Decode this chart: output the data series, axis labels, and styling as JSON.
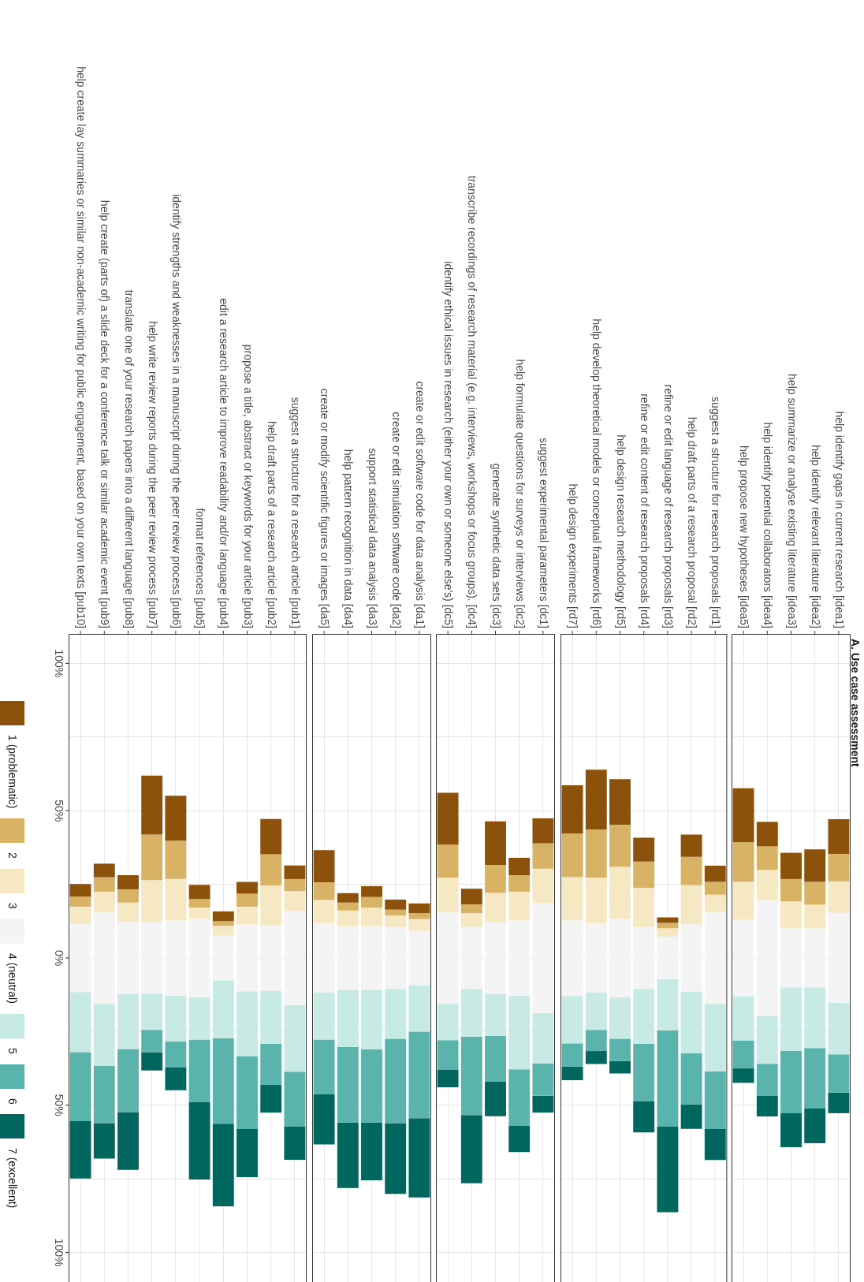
{
  "chart_data": [
    {
      "type": "bar",
      "legend": "left",
      "grid": true,
      "categories": [
        "help create lay summaries or similar non-academic writing for public engagement, based on your own texts [pub10]",
        "help create (parts of) a slide deck for a conference talk or similar academic event [pub9]",
        "translate one of your research papers into a different language [pub8]",
        "help write review reports during the peer review process [pub7]",
        "identify strengths and weaknesses in a manuscript during the peer review process [pub6]",
        "format references [pub5]",
        "edit a research article to improve readability and/or language [pub4]",
        "propose a title, abstract or keywords for your article [pub3]",
        "help draft parts of a research article [pub2]",
        "suggest a structure for a research article [pub1]"
      ],
      "ylim": [
        110,
        -110
      ],
      "yticks": [
        {
          "value": -100,
          "label": "100%"
        },
        {
          "value": -75,
          "label": null
        },
        {
          "value": -50,
          "label": "50%"
        },
        {
          "value": -25,
          "label": null
        },
        {
          "value": 0,
          "label": "0%"
        },
        {
          "value": 25,
          "label": null
        },
        {
          "value": 50,
          "label": "50%"
        },
        {
          "value": 75,
          "label": null
        },
        {
          "value": 100,
          "label": "100%"
        }
      ],
      "series": [
        {
          "name": "1 (problematic)",
          "color": "#8c510a",
          "base": [
            -25.1,
            -32.0,
            -28.1,
            -61.9,
            -55.1,
            -24.8,
            -15.8,
            -25.8,
            -47.2,
            -31.4
          ],
          "values": [
            4.3,
            4.6,
            4.8,
            20.0,
            15.3,
            4.8,
            3.3,
            4.0,
            12.0,
            4.6
          ]
        },
        {
          "name": "2",
          "color": "#d8b365",
          "base": [
            -20.8,
            -27.4,
            -23.3,
            -41.9,
            -39.8,
            -20.0,
            -12.5,
            -21.8,
            -35.2,
            -26.8
          ],
          "values": [
            3.4,
            4.9,
            4.5,
            15.5,
            13.0,
            2.9,
            1.6,
            4.4,
            10.6,
            4.1
          ]
        },
        {
          "name": "3",
          "color": "#f6e8c3",
          "base": [
            -17.4,
            -22.5,
            -18.8,
            -26.4,
            -26.8,
            -17.1,
            -10.9,
            -17.4,
            -24.6,
            -22.7
          ],
          "values": [
            5.8,
            6.9,
            6.6,
            14.3,
            14.0,
            3.7,
            3.3,
            6.1,
            13.5,
            6.8
          ]
        },
        {
          "name": "4 (neutral)",
          "color": "#f4f4f4",
          "base": [
            -11.6,
            -15.6,
            -12.2,
            -12.1,
            -12.8,
            -13.4,
            -7.6,
            -11.3,
            -11.1,
            -15.9
          ],
          "values": [
            23.2,
            31.2,
            24.4,
            24.2,
            25.6,
            26.8,
            15.2,
            22.6,
            22.2,
            31.8
          ]
        },
        {
          "name": "5",
          "color": "#c7eae5",
          "base": [
            11.6,
            15.6,
            12.2,
            12.1,
            12.8,
            13.4,
            7.6,
            11.3,
            11.1,
            15.9
          ],
          "values": [
            20.4,
            21.0,
            18.7,
            12.3,
            15.5,
            14.3,
            19.7,
            22.0,
            18.0,
            22.7
          ]
        },
        {
          "name": "6",
          "color": "#5ab4ac",
          "base": [
            32.0,
            36.6,
            30.9,
            24.4,
            28.3,
            27.7,
            27.3,
            33.3,
            29.1,
            38.6
          ],
          "values": [
            23.4,
            19.5,
            21.4,
            7.6,
            8.9,
            21.3,
            29.0,
            24.8,
            14.0,
            18.7
          ]
        },
        {
          "name": "7 (excellent)",
          "color": "#01665e",
          "base": [
            55.4,
            56.1,
            52.3,
            32.0,
            37.2,
            49.0,
            56.3,
            58.1,
            43.1,
            57.3
          ],
          "values": [
            19.5,
            12.0,
            19.6,
            6.2,
            7.7,
            26.2,
            28.0,
            16.3,
            9.4,
            11.2
          ]
        }
      ]
    },
    {
      "type": "bar",
      "grid": true,
      "tick_labels": "x",
      "categories": [
        "create or modify scientific figures or images [da5]",
        "help pattern recognition in data [da4]",
        "support statistical data analysis [da3]",
        "create or edit simulation software code [da2]",
        "create or edit software code for data analysis [da1]"
      ],
      "ylim": [
        110,
        -110
      ],
      "yticks": [
        -100,
        -75,
        -50,
        -25,
        0,
        25,
        50,
        75,
        100
      ],
      "series": [
        {
          "color": "#8c510a",
          "base": [
            -36.6,
            -22.0,
            -24.4,
            -19.8,
            -18.5
          ],
          "values": [
            10.9,
            3.2,
            3.7,
            3.4,
            3.3
          ]
        },
        {
          "color": "#d8b365",
          "base": [
            -25.7,
            -18.8,
            -20.7,
            -16.4,
            -15.2
          ],
          "values": [
            6.0,
            2.7,
            3.6,
            2.0,
            2.0
          ]
        },
        {
          "color": "#f6e8c3",
          "base": [
            -19.7,
            -16.1,
            -17.1,
            -14.4,
            -13.2
          ],
          "values": [
            7.9,
            5.3,
            6.3,
            3.9,
            4.0
          ]
        },
        {
          "color": "#f4f4f4",
          "base": [
            -11.8,
            -10.8,
            -10.8,
            -10.5,
            -9.2
          ],
          "values": [
            23.6,
            21.6,
            21.6,
            21.0,
            18.4
          ]
        },
        {
          "color": "#c7eae5",
          "base": [
            11.8,
            10.8,
            10.8,
            10.5,
            9.2
          ],
          "values": [
            15.9,
            19.4,
            20.2,
            16.9,
            15.8
          ]
        },
        {
          "color": "#5ab4ac",
          "base": [
            27.7,
            30.2,
            31.0,
            27.4,
            25.0
          ],
          "values": [
            18.5,
            25.7,
            24.9,
            28.7,
            29.4
          ]
        },
        {
          "color": "#01665e",
          "base": [
            46.2,
            55.9,
            55.9,
            56.1,
            54.4
          ],
          "values": [
            17.1,
            22.2,
            19.6,
            24.0,
            26.9
          ]
        }
      ]
    },
    {
      "type": "bar",
      "grid": true,
      "tick_labels": "x",
      "categories": [
        "identify ethical issues in research (either your own or someone else's) [dc5]",
        "transcribe recordings of research material (e.g. interviews, workshops or focus groups). [dc4]",
        "generate synthetic data sets [dc3]",
        "help formulate questions for surveys or interviews [dc2]",
        "suggest experimental parameters [dc1]"
      ],
      "ylim": [
        110,
        -110
      ],
      "yticks": [
        -100,
        -75,
        -50,
        -25,
        0,
        25,
        50,
        75,
        100
      ],
      "series": [
        {
          "color": "#8c510a",
          "base": [
            -56.1,
            -23.5,
            -46.4,
            -34.0,
            -47.4
          ],
          "values": [
            17.6,
            5.3,
            14.8,
            5.9,
            8.5
          ]
        },
        {
          "color": "#d8b365",
          "base": [
            -38.5,
            -18.2,
            -31.6,
            -28.1,
            -38.9
          ],
          "values": [
            11.2,
            3.0,
            9.5,
            5.6,
            8.6
          ]
        },
        {
          "color": "#f6e8c3",
          "base": [
            -27.3,
            -15.2,
            -22.1,
            -22.5,
            -30.3
          ],
          "values": [
            11.7,
            4.7,
            9.9,
            9.7,
            11.6
          ]
        },
        {
          "color": "#f4f4f4",
          "base": [
            -15.6,
            -10.5,
            -12.2,
            -12.8,
            -18.7
          ],
          "values": [
            31.2,
            21.0,
            24.4,
            25.6,
            37.4
          ]
        },
        {
          "color": "#c7eae5",
          "base": [
            15.6,
            10.5,
            12.2,
            12.8,
            18.7
          ],
          "values": [
            12.3,
            16.2,
            14.2,
            25.0,
            17.1
          ]
        },
        {
          "color": "#5ab4ac",
          "base": [
            27.9,
            26.7,
            26.4,
            37.8,
            35.8
          ],
          "values": [
            10.1,
            26.6,
            15.5,
            19.2,
            11.0
          ]
        },
        {
          "color": "#01665e",
          "base": [
            38.0,
            53.3,
            41.9,
            57.0,
            46.8
          ],
          "values": [
            5.9,
            23.2,
            11.8,
            8.9,
            5.7
          ]
        }
      ]
    },
    {
      "type": "bar",
      "grid": true,
      "tick_labels": "x",
      "categories": [
        "help design experiments [rd7]",
        "help develop theoretical models or conceptual frameworks [rd6]",
        "help design research methodology [rd5]",
        "refine or edit content of research proposals [rd4]",
        "refine or edit language of research proposals [rd3]",
        "help draft parts of a research proposal [rd2]",
        "suggest a structure for research proposals [rd1]"
      ],
      "ylim": [
        110,
        -110
      ],
      "yticks": [
        -100,
        -75,
        -50,
        -25,
        0,
        25,
        50,
        75,
        100
      ],
      "series": [
        {
          "color": "#8c510a",
          "base": [
            -58.6,
            -63.9,
            -60.7,
            -40.8,
            -13.8,
            -41.9,
            -31.3
          ],
          "values": [
            16.4,
            20.3,
            15.5,
            8.1,
            1.9,
            7.6,
            5.5
          ]
        },
        {
          "color": "#d8b365",
          "base": [
            -42.2,
            -43.6,
            -45.2,
            -32.7,
            -11.9,
            -34.3,
            -25.8
          ],
          "values": [
            14.8,
            16.3,
            14.3,
            8.9,
            1.8,
            9.6,
            4.3
          ]
        },
        {
          "color": "#f6e8c3",
          "base": [
            -27.4,
            -27.3,
            -30.9,
            -23.8,
            -10.1,
            -24.7,
            -21.5
          ],
          "values": [
            14.5,
            15.5,
            17.5,
            13.3,
            2.9,
            13.3,
            5.9
          ]
        },
        {
          "color": "#f4f4f4",
          "base": [
            -12.9,
            -11.8,
            -13.4,
            -10.5,
            -7.2,
            -11.4,
            -15.6
          ],
          "values": [
            25.8,
            23.6,
            26.8,
            21.0,
            14.4,
            22.8,
            31.2
          ]
        },
        {
          "color": "#c7eae5",
          "base": [
            12.9,
            11.8,
            13.4,
            10.5,
            7.2,
            11.4,
            15.6
          ],
          "values": [
            16.1,
            12.6,
            14.0,
            18.6,
            17.4,
            21.0,
            22.9
          ]
        },
        {
          "color": "#5ab4ac",
          "base": [
            29.0,
            24.4,
            27.4,
            29.1,
            24.6,
            32.4,
            38.5
          ],
          "values": [
            7.9,
            7.2,
            7.6,
            19.6,
            32.7,
            17.3,
            19.6
          ]
        },
        {
          "color": "#01665e",
          "base": [
            36.9,
            31.6,
            35.0,
            48.7,
            57.3,
            49.7,
            58.1
          ],
          "values": [
            4.6,
            4.4,
            4.2,
            10.5,
            29.0,
            8.3,
            10.5
          ]
        }
      ]
    },
    {
      "type": "bar",
      "title": "A. Use case assessment",
      "grid": true,
      "tick_labels": "x",
      "categories": [
        "help propose new hypotheses [idea5]",
        "help identify potential collaborators [idea4]",
        "help summarize or analyse existing literature [idea3]",
        "help identify relevant literature [idea2]",
        "help identify gaps in current research [idea1]"
      ],
      "ylim": [
        110,
        -110
      ],
      "yticks": [
        -100,
        -75,
        -50,
        -25,
        0,
        25,
        50,
        75,
        100
      ],
      "series": [
        {
          "color": "#8c510a",
          "base": [
            -57.6,
            -46.2,
            -35.7,
            -36.9,
            -47.1
          ],
          "values": [
            18.3,
            8.3,
            8.9,
            11.1,
            11.8
          ]
        },
        {
          "color": "#d8b365",
          "base": [
            -39.3,
            -37.9,
            -26.8,
            -25.8,
            -35.3
          ],
          "values": [
            13.5,
            8.0,
            7.6,
            7.7,
            9.3
          ]
        },
        {
          "color": "#f6e8c3",
          "base": [
            -25.8,
            -29.9,
            -19.2,
            -18.1,
            -26.0
          ],
          "values": [
            12.8,
            10.1,
            9.2,
            8.1,
            10.8
          ]
        },
        {
          "color": "#f4f4f4",
          "base": [
            -13.0,
            -19.8,
            -10.0,
            -10.0,
            -15.2
          ],
          "values": [
            26.0,
            39.6,
            20.0,
            20.0,
            30.4
          ]
        },
        {
          "color": "#c7eae5",
          "base": [
            13.0,
            19.8,
            10.0,
            10.0,
            15.2
          ],
          "values": [
            15.1,
            16.1,
            21.6,
            20.6,
            17.5
          ]
        },
        {
          "color": "#5ab4ac",
          "base": [
            28.1,
            35.9,
            31.6,
            30.6,
            32.7
          ],
          "values": [
            9.4,
            10.8,
            21.1,
            20.5,
            13.0
          ]
        },
        {
          "color": "#01665e",
          "base": [
            37.5,
            46.7,
            52.7,
            51.1,
            45.7
          ],
          "values": [
            4.9,
            7.1,
            11.5,
            11.8,
            7.0
          ]
        }
      ]
    }
  ]
}
